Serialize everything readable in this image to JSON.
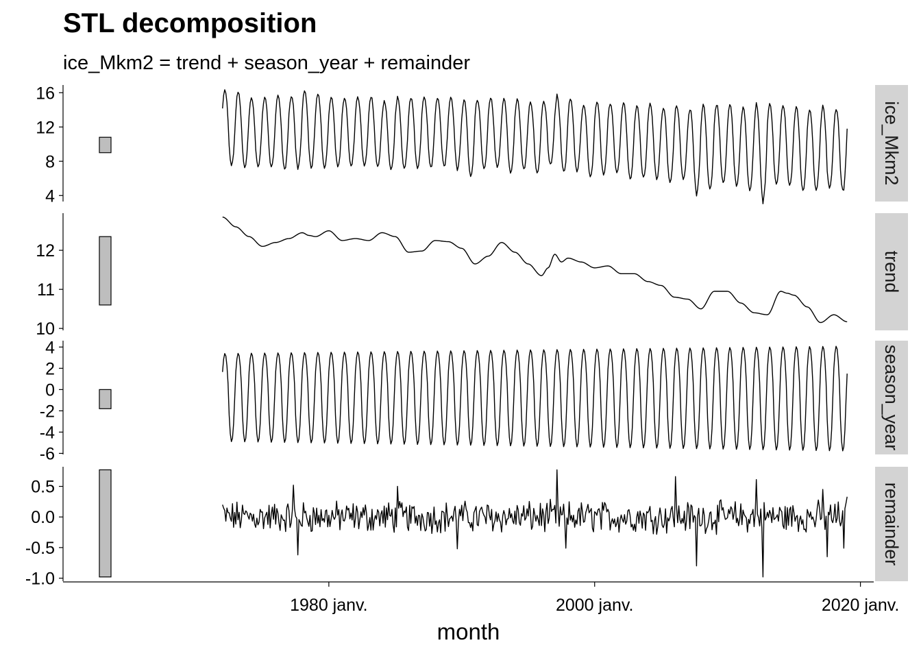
{
  "chart_data": {
    "type": "line",
    "title": "STL decomposition",
    "subtitle": "ice_Mkm2 = trend + season_year + remainder",
    "xlabel": "month",
    "x_start": "1972 janv.",
    "x_end": "2019 janv.",
    "xlim": [
      "1960 janv.",
      "2021 janv."
    ],
    "x_ticks": [
      {
        "date": "1980 janv.",
        "label": "1980 janv."
      },
      {
        "date": "2000 janv.",
        "label": "2000 janv."
      },
      {
        "date": "2020 janv.",
        "label": "2020 janv."
      }
    ],
    "panels": [
      {
        "strip": "ice_Mkm2",
        "ylim": [
          3.3,
          16.9
        ],
        "yticks": [
          4,
          8,
          12,
          16
        ],
        "tick_labels": [
          "4",
          "8",
          "12",
          "16"
        ],
        "scale_bar": [
          9.0,
          10.8
        ],
        "max_by_year": [
          16.3,
          16.1,
          15.4,
          15.5,
          15.7,
          15.6,
          16.2,
          15.9,
          15.5,
          15.4,
          15.5,
          15.6,
          15.0,
          15.3,
          15.4,
          15.6,
          15.5,
          15.5,
          15.1,
          15.2,
          15.4,
          15.3,
          15.2,
          14.9,
          15.0,
          15.4,
          15.3,
          14.6,
          14.9,
          14.8,
          14.9,
          14.5,
          14.7,
          14.3,
          14.4,
          14.1,
          14.6,
          14.7,
          14.6,
          14.3,
          14.5,
          14.7,
          14.6,
          14.4,
          14.0,
          14.3,
          14.1
        ],
        "min_by_year": [
          7.5,
          7.2,
          7.4,
          7.3,
          7.1,
          7.4,
          7.3,
          7.2,
          7.3,
          7.4,
          7.4,
          7.3,
          7.0,
          7.1,
          7.2,
          7.3,
          7.4,
          7.2,
          6.3,
          7.1,
          7.3,
          6.6,
          7.0,
          6.6,
          7.5,
          6.7,
          6.8,
          6.1,
          6.3,
          6.7,
          5.9,
          6.1,
          6.0,
          5.5,
          5.9,
          4.4,
          4.7,
          5.4,
          5.1,
          4.6,
          3.6,
          5.3,
          5.1,
          4.6,
          4.6,
          4.8,
          4.6
        ],
        "final_value": 11.8
      },
      {
        "strip": "trend",
        "ylim": [
          9.95,
          12.95
        ],
        "yticks": [
          10,
          11,
          12
        ],
        "tick_labels": [
          "10",
          "11",
          "12"
        ],
        "scale_bar": [
          10.6,
          12.35
        ],
        "knots_x": [
          1972.0,
          1973.0,
          1974.0,
          1975.0,
          1976.0,
          1977.0,
          1978.0,
          1978.5,
          1979.0,
          1980.0,
          1981.0,
          1982.0,
          1983.0,
          1984.0,
          1985.0,
          1986.0,
          1987.0,
          1988.0,
          1989.0,
          1990.0,
          1991.0,
          1992.0,
          1993.0,
          1994.0,
          1995.0,
          1996.0,
          1996.5,
          1997.0,
          1997.5,
          1998.0,
          1999.0,
          2000.0,
          2001.0,
          2002.0,
          2003.0,
          2004.0,
          2005.0,
          2006.0,
          2007.0,
          2008.0,
          2009.0,
          2010.0,
          2011.0,
          2012.0,
          2013.0,
          2014.0,
          2014.5,
          2015.0,
          2016.0,
          2017.0,
          2018.0,
          2019.0
        ],
        "knots_y": [
          12.85,
          12.6,
          12.35,
          12.1,
          12.2,
          12.3,
          12.45,
          12.38,
          12.35,
          12.5,
          12.25,
          12.3,
          12.25,
          12.45,
          12.35,
          11.95,
          11.98,
          12.25,
          12.22,
          12.05,
          11.65,
          11.85,
          12.2,
          11.95,
          11.65,
          11.35,
          11.55,
          11.9,
          11.7,
          11.8,
          11.7,
          11.55,
          11.6,
          11.4,
          11.4,
          11.2,
          11.1,
          10.8,
          10.75,
          10.5,
          10.95,
          10.95,
          10.65,
          10.4,
          10.35,
          10.95,
          10.9,
          10.85,
          10.55,
          10.15,
          10.35,
          10.17
        ],
        "final_value": 10.17
      },
      {
        "strip": "season_year",
        "ylim": [
          -6.1,
          4.6
        ],
        "yticks": [
          -6,
          -4,
          -2,
          0,
          2,
          4
        ],
        "tick_labels": [
          "-6",
          "-4",
          "-2",
          "0",
          "2",
          "4"
        ],
        "scale_bar": [
          -1.8,
          0
        ],
        "amplitude_start": [
          3.4,
          -4.9
        ],
        "amplitude_end": [
          4.1,
          -5.8
        ],
        "final_value": 1.5
      },
      {
        "strip": "remainder",
        "ylim": [
          -1.05,
          0.82
        ],
        "yticks": [
          -1.0,
          -0.5,
          0.0,
          0.5
        ],
        "tick_labels": [
          "-1.0",
          "-0.5",
          "0.0",
          "0.5"
        ],
        "scale_bar": [
          -0.98,
          0.77
        ],
        "series_start": 0.2,
        "series_end": 0.33,
        "peaks": [
          {
            "x": "1977 mai",
            "y": 0.52
          },
          {
            "x": "1977 sept.",
            "y": -0.62
          },
          {
            "x": "1985 mars",
            "y": 0.5
          },
          {
            "x": "1989 sept.",
            "y": -0.52
          },
          {
            "x": "1997 mars",
            "y": 0.77
          },
          {
            "x": "1997 nov.",
            "y": -0.51
          },
          {
            "x": "2006 févr.",
            "y": 0.66
          },
          {
            "x": "2007 sept.",
            "y": -0.8
          },
          {
            "x": "2012 mars",
            "y": 0.61
          },
          {
            "x": "2012 sept.",
            "y": -0.98
          },
          {
            "x": "2017 mars",
            "y": 0.45
          },
          {
            "x": "2017 juil.",
            "y": -0.65
          },
          {
            "x": "2018 oct.",
            "y": -0.51
          }
        ]
      }
    ]
  }
}
